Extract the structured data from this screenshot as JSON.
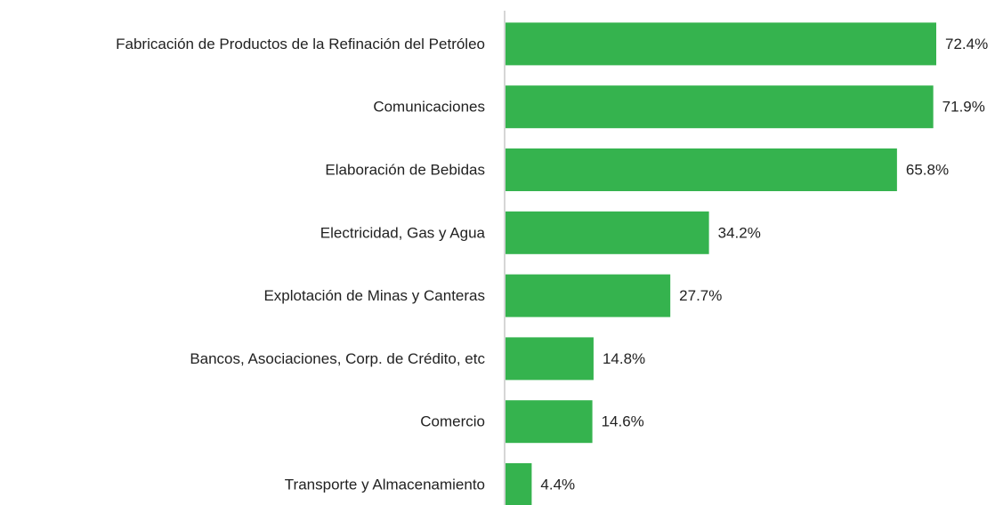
{
  "chart_data": {
    "type": "barh",
    "categories": [
      "Fabricación de Productos de la Refinación del Petróleo",
      "Comunicaciones",
      "Elaboración de Bebidas",
      "Electricidad, Gas y Agua",
      "Explotación de Minas y Canteras",
      "Bancos, Asociaciones, Corp. de Crédito, etc",
      "Comercio",
      "Transporte y Almacenamiento"
    ],
    "values": [
      72.4,
      71.9,
      65.8,
      34.2,
      27.7,
      14.8,
      14.6,
      4.4
    ],
    "value_labels": [
      "72.4%",
      "71.9%",
      "65.8%",
      "34.2%",
      "27.7%",
      "14.8%",
      "14.6%",
      "4.4%"
    ],
    "color": "#35b34e"
  }
}
